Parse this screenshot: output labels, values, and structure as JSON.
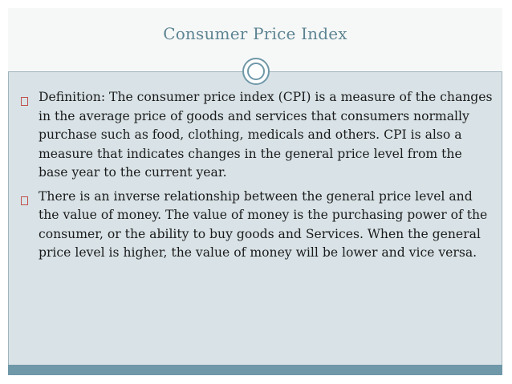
{
  "slide": {
    "title": "Consumer Price Index",
    "bullets": [
      {
        "text": "Definition: The consumer price index (CPI) is a measure of the changes in the average price of goods and services that consumers  normally purchase such as food, clothing, medicals and others. CPI is also a measure that indicates changes in the general price level from the base year to the current year."
      },
      {
        "text": "There is an inverse relationship between the general price level and the value of money. The value of money is the purchasing power of the consumer, or the ability to buy goods and Services. When the general price level is higher, the value of money will be lower and vice versa."
      }
    ]
  },
  "colors": {
    "title": "#5d8492",
    "accent": "#6f98a8",
    "bullet": "#c0504d",
    "body_bg": "#d9e3e7"
  }
}
